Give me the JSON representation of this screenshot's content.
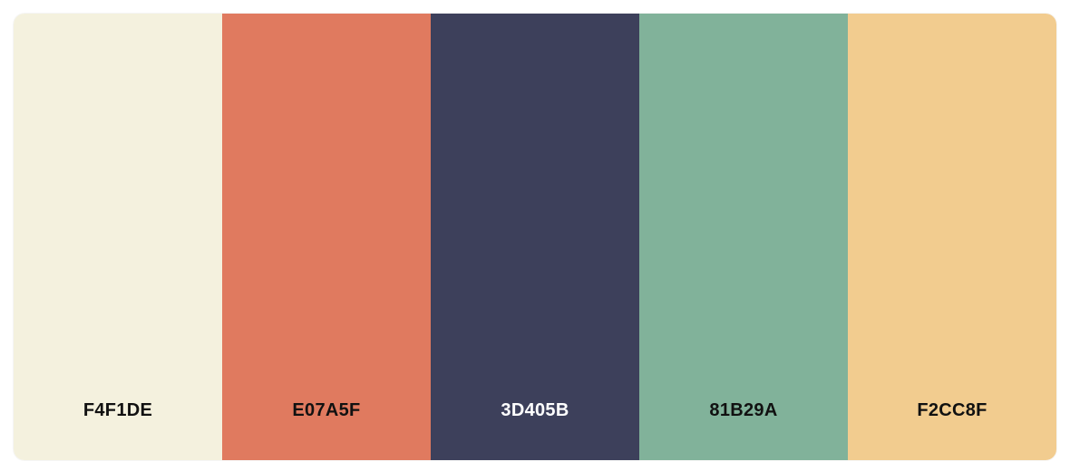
{
  "palette": {
    "swatches": [
      {
        "label": "F4F1DE",
        "color": "#F4F1DE",
        "text_color": "#111111"
      },
      {
        "label": "E07A5F",
        "color": "#E07A5F",
        "text_color": "#111111"
      },
      {
        "label": "3D405B",
        "color": "#3D405B",
        "text_color": "#FFFFFF"
      },
      {
        "label": "81B29A",
        "color": "#81B29A",
        "text_color": "#111111"
      },
      {
        "label": "F2CC8F",
        "color": "#F2CC8F",
        "text_color": "#111111"
      }
    ]
  }
}
